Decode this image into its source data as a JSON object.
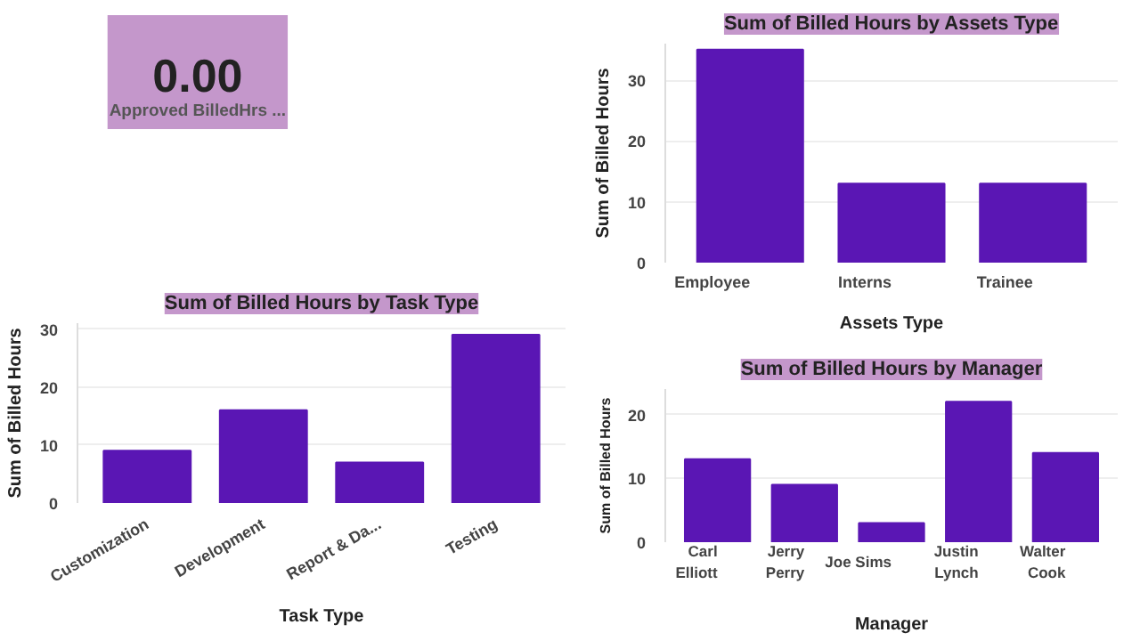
{
  "chart_data": [
    {
      "type": "other",
      "title": "0.00",
      "subtitle": "Approved BilledHrs ..."
    },
    {
      "type": "bar",
      "title": "Sum of Billed Hours by Assets Type",
      "xlabel": "Assets Type",
      "ylabel": "Sum of Billed Hours",
      "categories": [
        "Employee",
        "Interns",
        "Trainee"
      ],
      "values": [
        35,
        13,
        13
      ],
      "color": "#5a16b4",
      "ylim": [
        0,
        36
      ],
      "yticks": [
        0,
        10,
        20,
        30
      ],
      "grid": "y"
    },
    {
      "type": "bar",
      "title": "Sum of Billed Hours by Task Type",
      "xlabel": "Task Type",
      "ylabel": "Sum of Billed Hours",
      "categories": [
        "Customization",
        "Development",
        "Report & Da...",
        "Testing"
      ],
      "values": [
        9,
        16,
        7,
        29
      ],
      "color": "#5a16b4",
      "ylim": [
        0,
        31
      ],
      "yticks": [
        0,
        10,
        20,
        30
      ],
      "grid": "y"
    },
    {
      "type": "bar",
      "title": "Sum of Billed Hours by Manager",
      "xlabel": "Manager",
      "ylabel": "Sum of Billed Hours",
      "categories": [
        "Carl Elliott",
        "Jerry Perry",
        "Joe Sims",
        "Justin Lynch",
        "Walter Cook"
      ],
      "values": [
        13,
        9,
        3,
        22,
        14
      ],
      "color": "#5a16b4",
      "ylim": [
        0,
        24
      ],
      "yticks": [
        0,
        10,
        20
      ],
      "grid": "y"
    }
  ]
}
